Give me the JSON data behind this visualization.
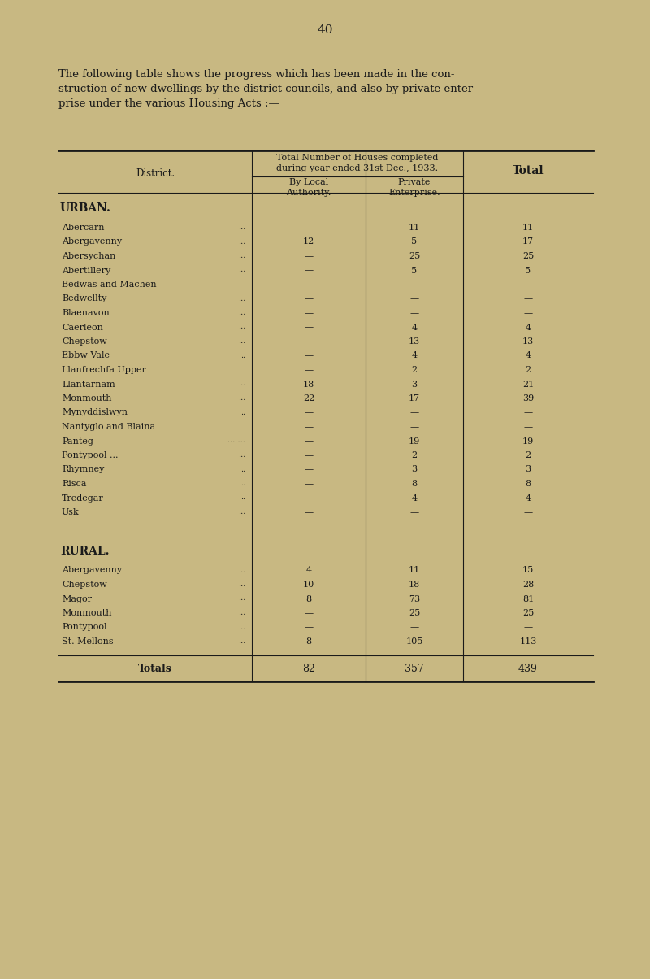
{
  "page_number": "40",
  "intro_lines": [
    "The following table shows the progress which has been made in the con-",
    "struction of new dwellings by the district councils, and also by private enter",
    "prise under the various Housing Acts :—"
  ],
  "header_line1": "Total Number of Houses completed",
  "header_line2": "during year ended 31st Dec., 1933.",
  "col1_header": "By Local\nAuthority.",
  "col2_header": "Private\nEnterprise.",
  "col3_header": "Total",
  "district_label": "District.",
  "section_urban": "URBAN.",
  "section_rural": "RURAL.",
  "urban_rows": [
    [
      "Abercarn",
      "...",
      "—",
      "11",
      "11"
    ],
    [
      "Abergavenny",
      "...",
      "12",
      "5",
      "17"
    ],
    [
      "Abersychan",
      "...",
      "—",
      "25",
      "25"
    ],
    [
      "Abertillery",
      "...",
      "—",
      "5",
      "5"
    ],
    [
      "Bedwas and Machen",
      "",
      "—",
      "—",
      "—"
    ],
    [
      "Bedwellty",
      "...",
      "—",
      "—",
      "—"
    ],
    [
      "Blaenavon",
      "...",
      "—",
      "—",
      "—"
    ],
    [
      "Caerleon",
      "...",
      "—",
      "4",
      "4"
    ],
    [
      "Chepstow",
      "...",
      "—",
      "13",
      "13"
    ],
    [
      "Ebbw Vale",
      "..",
      "—",
      "4",
      "4"
    ],
    [
      "Llanfrechfa Upper",
      "",
      "—",
      "2",
      "2"
    ],
    [
      "Llantarnam",
      "...",
      "18",
      "3",
      "21"
    ],
    [
      "Monmouth",
      "...",
      "22",
      "17",
      "39"
    ],
    [
      "Mynyddislwyn",
      "..",
      "—",
      "—",
      "—"
    ],
    [
      "Nantyglo and Blaina",
      "",
      "—",
      "—",
      "—"
    ],
    [
      "Panteg",
      "... ...",
      "—",
      "19",
      "19"
    ],
    [
      "Pontypool ...",
      "...",
      "—",
      "2",
      "2"
    ],
    [
      "Rhymney",
      "..",
      "—",
      "3",
      "3"
    ],
    [
      "Risca",
      "..",
      "—",
      "8",
      "8"
    ],
    [
      "Tredegar",
      "..",
      "—",
      "4",
      "4"
    ],
    [
      "Usk",
      "...",
      "—",
      "—",
      "—"
    ]
  ],
  "rural_rows": [
    [
      "Abergavenny",
      "...",
      "4",
      "11",
      "15"
    ],
    [
      "Chepstow",
      "...",
      "10",
      "18",
      "28"
    ],
    [
      "Magor",
      "...",
      "8",
      "73",
      "81"
    ],
    [
      "Monmouth",
      "...",
      "—",
      "25",
      "25"
    ],
    [
      "Pontypool",
      "...",
      "—",
      "—",
      "—"
    ],
    [
      "St. Mellons",
      "...",
      "8",
      "105",
      "113"
    ]
  ],
  "totals_row": [
    "Totals",
    "",
    "82",
    "357",
    "439"
  ],
  "bg_color": "#c8b882",
  "text_color": "#1a1a1a"
}
